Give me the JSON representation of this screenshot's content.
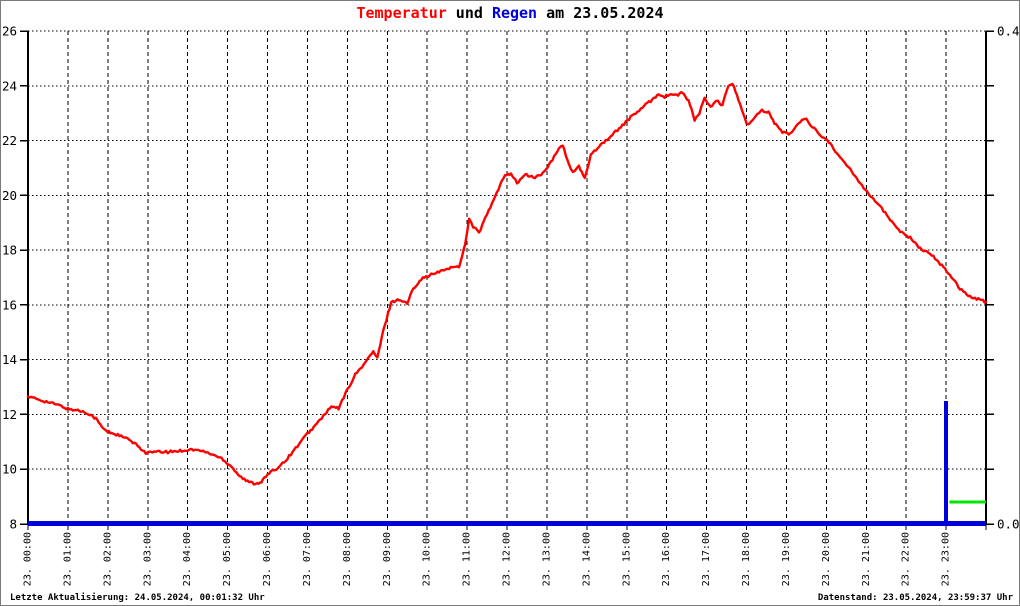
{
  "title": {
    "part_temperatur": "Temperatur",
    "part_und": " und ",
    "part_regen": "Regen",
    "part_date": " am 23.05.2024"
  },
  "footer": {
    "left": "Letzte Aktualisierung: 24.05.2024, 00:01:32 Uhr",
    "right": "Datenstand: 23.05.2024, 23:59:37 Uhr"
  },
  "colors": {
    "temperature": "#ff0000",
    "rain": "#0000dd",
    "marker_green": "#00e600",
    "axis": "#000000",
    "background": "#ffffff"
  },
  "chart_data": {
    "type": "line",
    "title": "Temperatur und Regen am 23.05.2024",
    "grid": {
      "vertical_style": "dashed",
      "horizontal_style": "dotted",
      "grid_on": true
    },
    "x_axis": {
      "hours_range": [
        0,
        24
      ],
      "tick_every_hours": 1,
      "labels": [
        "23. 00:00",
        "23. 01:00",
        "23. 02:00",
        "23. 03:00",
        "23. 04:00",
        "23. 05:00",
        "23. 06:00",
        "23. 07:00",
        "23. 08:00",
        "23. 09:00",
        "23. 10:00",
        "23. 11:00",
        "23. 12:00",
        "23. 13:00",
        "23. 14:00",
        "23. 15:00",
        "23. 16:00",
        "23. 17:00",
        "23. 18:00",
        "23. 19:00",
        "23. 20:00",
        "23. 21:00",
        "23. 22:00",
        "23. 23:00"
      ]
    },
    "y_left": {
      "min": 8,
      "max": 26,
      "tick_step": 2,
      "ticks": [
        26,
        24,
        22,
        20,
        18,
        16,
        14,
        12,
        10,
        8
      ]
    },
    "y_right": {
      "min": 0.0,
      "max": 0.4,
      "shown_labels": [
        {
          "value": 0.4,
          "text": "0.4"
        },
        {
          "value": 0.0,
          "text": "0.0"
        }
      ]
    },
    "series": [
      {
        "name": "Temperatur",
        "type": "line",
        "axis": "left",
        "color": "#ff0000",
        "points": [
          [
            0,
            12.65
          ],
          [
            0.25,
            12.55
          ],
          [
            0.5,
            12.45
          ],
          [
            0.75,
            12.35
          ],
          [
            1,
            12.2
          ],
          [
            1.25,
            12.15
          ],
          [
            1.5,
            12.05
          ],
          [
            1.7,
            11.85
          ],
          [
            1.85,
            11.55
          ],
          [
            1.95,
            11.4
          ],
          [
            2.25,
            11.25
          ],
          [
            2.5,
            11.1
          ],
          [
            2.75,
            10.85
          ],
          [
            2.95,
            10.6
          ],
          [
            3.2,
            10.63
          ],
          [
            3.5,
            10.63
          ],
          [
            3.85,
            10.68
          ],
          [
            4.1,
            10.72
          ],
          [
            4.35,
            10.67
          ],
          [
            4.6,
            10.55
          ],
          [
            4.85,
            10.4
          ],
          [
            5.1,
            10.1
          ],
          [
            5.3,
            9.75
          ],
          [
            5.5,
            9.55
          ],
          [
            5.7,
            9.47
          ],
          [
            5.85,
            9.55
          ],
          [
            6,
            9.8
          ],
          [
            6.25,
            10.05
          ],
          [
            6.5,
            10.4
          ],
          [
            6.75,
            10.85
          ],
          [
            7,
            11.3
          ],
          [
            7.2,
            11.6
          ],
          [
            7.4,
            11.95
          ],
          [
            7.6,
            12.28
          ],
          [
            7.78,
            12.22
          ],
          [
            8,
            12.9
          ],
          [
            8.2,
            13.45
          ],
          [
            8.45,
            13.9
          ],
          [
            8.65,
            14.3
          ],
          [
            8.75,
            14.05
          ],
          [
            8.9,
            15.05
          ],
          [
            9.1,
            16.1
          ],
          [
            9.3,
            16.2
          ],
          [
            9.5,
            16.05
          ],
          [
            9.65,
            16.6
          ],
          [
            9.85,
            16.95
          ],
          [
            10.1,
            17.1
          ],
          [
            10.3,
            17.2
          ],
          [
            10.55,
            17.35
          ],
          [
            10.8,
            17.4
          ],
          [
            10.95,
            18.2
          ],
          [
            11.05,
            19.15
          ],
          [
            11.15,
            18.85
          ],
          [
            11.3,
            18.65
          ],
          [
            11.5,
            19.3
          ],
          [
            11.75,
            20.1
          ],
          [
            11.95,
            20.75
          ],
          [
            12.1,
            20.8
          ],
          [
            12.25,
            20.45
          ],
          [
            12.45,
            20.75
          ],
          [
            12.7,
            20.65
          ],
          [
            12.9,
            20.8
          ],
          [
            13.1,
            21.2
          ],
          [
            13.3,
            21.7
          ],
          [
            13.4,
            21.85
          ],
          [
            13.55,
            21.1
          ],
          [
            13.65,
            20.85
          ],
          [
            13.8,
            21.05
          ],
          [
            13.95,
            20.6
          ],
          [
            14.1,
            21.5
          ],
          [
            14.35,
            21.85
          ],
          [
            14.6,
            22.15
          ],
          [
            14.85,
            22.5
          ],
          [
            15.1,
            22.85
          ],
          [
            15.35,
            23.15
          ],
          [
            15.6,
            23.45
          ],
          [
            15.8,
            23.7
          ],
          [
            15.95,
            23.6
          ],
          [
            16.1,
            23.7
          ],
          [
            16.25,
            23.65
          ],
          [
            16.4,
            23.75
          ],
          [
            16.55,
            23.45
          ],
          [
            16.7,
            22.75
          ],
          [
            16.82,
            23.0
          ],
          [
            16.95,
            23.55
          ],
          [
            17.1,
            23.2
          ],
          [
            17.25,
            23.45
          ],
          [
            17.4,
            23.3
          ],
          [
            17.55,
            24.0
          ],
          [
            17.65,
            24.1
          ],
          [
            17.8,
            23.5
          ],
          [
            18,
            22.6
          ],
          [
            18.15,
            22.7
          ],
          [
            18.35,
            23.1
          ],
          [
            18.55,
            23.05
          ],
          [
            18.7,
            22.65
          ],
          [
            18.9,
            22.3
          ],
          [
            19.1,
            22.25
          ],
          [
            19.35,
            22.7
          ],
          [
            19.5,
            22.8
          ],
          [
            19.65,
            22.5
          ],
          [
            19.85,
            22.2
          ],
          [
            20.1,
            21.9
          ],
          [
            20.35,
            21.35
          ],
          [
            20.6,
            20.95
          ],
          [
            20.85,
            20.45
          ],
          [
            21.1,
            20.0
          ],
          [
            21.35,
            19.6
          ],
          [
            21.6,
            19.1
          ],
          [
            21.85,
            18.7
          ],
          [
            22.1,
            18.45
          ],
          [
            22.35,
            18.05
          ],
          [
            22.6,
            17.9
          ],
          [
            22.85,
            17.5
          ],
          [
            23.1,
            17.1
          ],
          [
            23.35,
            16.6
          ],
          [
            23.6,
            16.3
          ],
          [
            23.85,
            16.2
          ],
          [
            24,
            16.1
          ]
        ]
      },
      {
        "name": "Regen",
        "type": "bar",
        "axis": "right",
        "color": "#0000dd",
        "baseline_value": 0.0,
        "bars": [
          {
            "hour": 23.0,
            "value": 0.1,
            "width_hours": 0.1
          }
        ]
      },
      {
        "name": "Regen-Marker",
        "type": "segment",
        "axis": "right",
        "color": "#00e600",
        "segment": {
          "from_hour": 23.08,
          "to_hour": 24.0,
          "value": 0.018
        }
      }
    ]
  }
}
